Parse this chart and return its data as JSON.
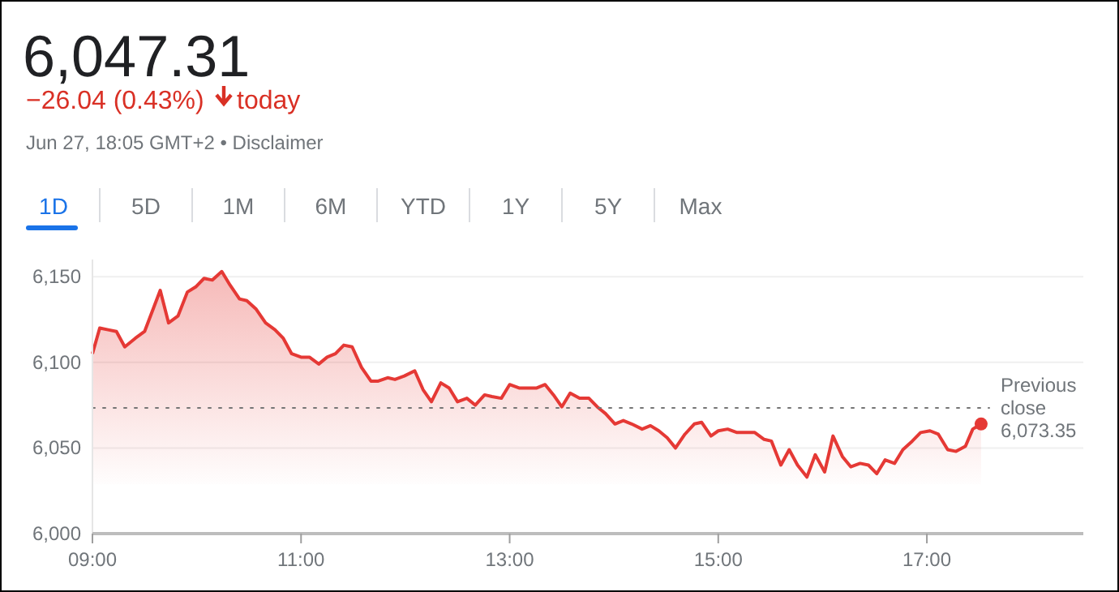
{
  "chart_data": {
    "type": "area",
    "title": "6,047.31",
    "subtitle": "−26.04 (0.43%)",
    "annotations": [
      "today",
      "Jun 27, 18:05 GMT+2 • Disclaimer",
      "1D",
      "5D",
      "1M",
      "6M",
      "YTD",
      "1Y",
      "5Y",
      "Max"
    ],
    "x": [
      9.0,
      9.07,
      9.15,
      9.23,
      9.31,
      9.41,
      9.5,
      9.65,
      9.73,
      9.82,
      9.91,
      9.99,
      10.07,
      10.15,
      10.24,
      10.32,
      10.41,
      10.48,
      10.57,
      10.66,
      10.75,
      10.83,
      10.91,
      11.0,
      11.08,
      11.17,
      11.25,
      11.33,
      11.41,
      11.49,
      11.58,
      11.67,
      11.74,
      11.83,
      11.9,
      11.99,
      12.09,
      12.17,
      12.25,
      12.34,
      12.42,
      12.5,
      12.59,
      12.67,
      12.76,
      12.83,
      12.92,
      13.0,
      13.09,
      13.17,
      13.26,
      13.34,
      13.42,
      13.5,
      13.58,
      13.67,
      13.76,
      13.84,
      13.92,
      14.01,
      14.09,
      14.17,
      14.27,
      14.35,
      14.43,
      14.51,
      14.59,
      14.68,
      14.77,
      14.84,
      14.93,
      15.0,
      15.09,
      15.18,
      15.26,
      15.35,
      15.44,
      15.51,
      15.6,
      15.68,
      15.76,
      15.85,
      15.93,
      16.02,
      16.1,
      16.19,
      16.27,
      16.36,
      16.44,
      16.52,
      16.6,
      16.69,
      16.77,
      16.86,
      16.94,
      17.03,
      17.11,
      17.2,
      17.28,
      17.37,
      17.44,
      17.52
    ],
    "series": [
      {
        "color": "#e53935",
        "values": [
          6105,
          6120,
          6119,
          6118,
          6109,
          6114,
          6118,
          6142,
          6123,
          6127,
          6141,
          6144,
          6149,
          6148,
          6153,
          6145,
          6137,
          6136,
          6131,
          6123,
          6119,
          6114,
          6105,
          6103,
          6103,
          6099,
          6103,
          6105,
          6110,
          6109,
          6097,
          6089,
          6089,
          6091,
          6090,
          6092,
          6095,
          6084,
          6077,
          6088,
          6085,
          6077,
          6079,
          6075,
          6081,
          6080,
          6079,
          6087,
          6085,
          6085,
          6085,
          6087,
          6081,
          6074,
          6082,
          6079,
          6079,
          6074,
          6070,
          6064,
          6066,
          6064,
          6061,
          6063,
          6060,
          6056,
          6050,
          6058,
          6064,
          6065,
          6057,
          6060,
          6061,
          6059,
          6059,
          6059,
          6055,
          6054,
          6040,
          6049,
          6040,
          6033,
          6046,
          6036,
          6057,
          6045,
          6039,
          6041,
          6040,
          6035,
          6043,
          6041,
          6049,
          6054,
          6059,
          6060,
          6058,
          6049,
          6048,
          6051,
          6061,
          6064
        ]
      }
    ],
    "xlim": [
      9,
      18.5
    ],
    "ylim": [
      6000,
      6160
    ],
    "xticks": [
      {
        "value": 9,
        "label": "09:00"
      },
      {
        "value": 11,
        "label": "11:00"
      },
      {
        "value": 13,
        "label": "13:00"
      },
      {
        "value": 15,
        "label": "15:00"
      },
      {
        "value": 17,
        "label": "17:00"
      }
    ],
    "yticks": [
      {
        "value": 6000,
        "label": "6,000"
      },
      {
        "value": 6050,
        "label": "6,050"
      },
      {
        "value": 6100,
        "label": "6,100"
      },
      {
        "value": 6150,
        "label": "6,150"
      }
    ],
    "grid": "y",
    "line_style": "solid",
    "ref_lines": [
      {
        "axis": "y",
        "value": 6073.35,
        "label": "Previous close 6,073.35",
        "color": "#757575",
        "line_style": "dotted"
      }
    ]
  }
}
